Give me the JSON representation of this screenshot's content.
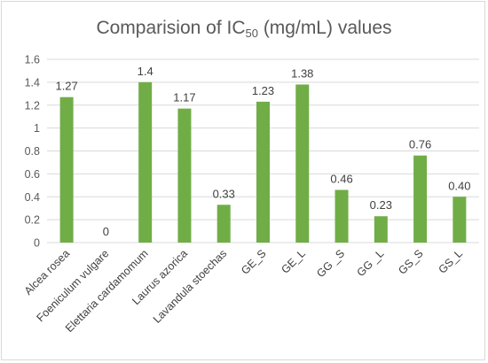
{
  "chart_data": {
    "type": "bar",
    "title": {
      "prefix": "Comparision of IC",
      "subscript": "50",
      "suffix": " (mg/mL) values"
    },
    "categories": [
      "Alcea rosea",
      "Foeniculum vulgare",
      "Elettaria cardamomum",
      "Laurus azorica",
      "Lavandula stoechas",
      "GE_S",
      "GE_L",
      "GG _S",
      "GG _L",
      "GS_S",
      "GS_L"
    ],
    "values": [
      1.27,
      0,
      1.4,
      1.17,
      0.33,
      1.23,
      1.38,
      0.46,
      0.23,
      0.76,
      0.4
    ],
    "data_labels": [
      "1.27",
      "0",
      "1.4",
      "1.17",
      "0.33",
      "1.23",
      "1.38",
      "0.46",
      "0.23",
      "0.76",
      "0.40"
    ],
    "y_ticks": [
      "0",
      "0.2",
      "0.4",
      "0.6",
      "0.8",
      "1",
      "1.2",
      "1.4",
      "1.6"
    ],
    "ylim": [
      0,
      1.6
    ],
    "grid": true,
    "bar_color": "#70ad47",
    "grid_color": "#d9d9d9",
    "legend": "none"
  }
}
